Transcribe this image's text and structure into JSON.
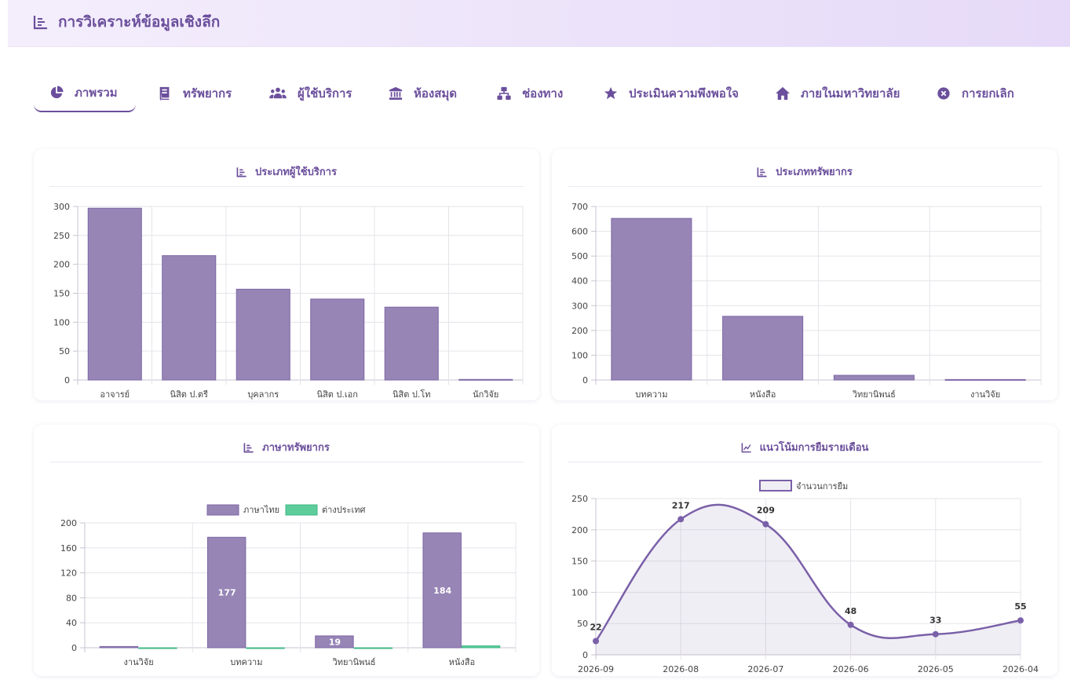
{
  "header": {
    "title": "การวิเคราะห์ข้อมูลเชิงลึก",
    "icon": "bar-chart-icon"
  },
  "tabs": [
    {
      "label": "ภาพรวม",
      "icon": "pie-chart-icon",
      "active": true
    },
    {
      "label": "ทรัพยากร",
      "icon": "book-icon"
    },
    {
      "label": "ผู้ใช้บริการ",
      "icon": "users-icon"
    },
    {
      "label": "ห้องสมุด",
      "icon": "library-icon"
    },
    {
      "label": "ช่องทาง",
      "icon": "network-icon"
    },
    {
      "label": "ประเมินความพึงพอใจ",
      "icon": "star-icon"
    },
    {
      "label": "ภายในมหาวิทยาลัย",
      "icon": "home-icon"
    },
    {
      "label": "การยกเลิก",
      "icon": "cancel-icon"
    }
  ],
  "cards": {
    "user_types": {
      "title": "ประเภทผู้ใช้บริการ"
    },
    "resource_types": {
      "title": "ประเภททรัพยากร"
    },
    "resource_language": {
      "title": "ภาษาทรัพยากร"
    },
    "monthly_trend": {
      "title": "แนวโน้มการยืมรายเดือน"
    }
  },
  "colors": {
    "primary": "#6b4f9c",
    "bar": "#9785b6",
    "green": "#5dcd9b"
  },
  "chart_data": [
    {
      "type": "bar",
      "categories": [
        "อาจารย์",
        "นิสิต ป.ตรี",
        "บุคลากร",
        "นิสิต ป.เอก",
        "นิสิต ป.โท",
        "นักวิจัย"
      ],
      "values": [
        297,
        215,
        157,
        140,
        126,
        1
      ],
      "ylim": [
        0,
        300
      ],
      "yticks": [
        0,
        50,
        100,
        150,
        200,
        250,
        300
      ],
      "grid": true
    },
    {
      "type": "bar",
      "categories": [
        "บทความ",
        "หนังสือ",
        "วิทยานิพนธ์",
        "งานวิจัย"
      ],
      "values": [
        652,
        257,
        19,
        2
      ],
      "ylim": [
        0,
        700
      ],
      "yticks": [
        0,
        100,
        200,
        300,
        400,
        500,
        600,
        700
      ],
      "grid": true
    },
    {
      "type": "bar",
      "categories": [
        "งานวิจัย",
        "บทความ",
        "วิทยานิพนธ์",
        "หนังสือ"
      ],
      "series": [
        {
          "name": "ภาษาไทย",
          "values": [
            2,
            177,
            19,
            184
          ],
          "labels": [
            "",
            "177",
            "19",
            "184"
          ]
        },
        {
          "name": "ต่างประเทศ",
          "values": [
            0,
            0,
            0,
            3
          ],
          "labels": [
            "",
            "",
            "",
            ""
          ]
        }
      ],
      "ylim": [
        0,
        200
      ],
      "yticks": [
        0,
        40,
        80,
        120,
        160,
        200
      ],
      "legend": "top",
      "grid": true
    },
    {
      "type": "line",
      "x": [
        "2026-09",
        "2026-08",
        "2026-07",
        "2026-06",
        "2026-05",
        "2026-04"
      ],
      "series": [
        {
          "name": "จำนวนการยืม",
          "values": [
            22,
            217,
            209,
            48,
            33,
            55
          ]
        }
      ],
      "ylim": [
        0,
        250
      ],
      "yticks": [
        0,
        50,
        100,
        150,
        200,
        250
      ],
      "legend": "top",
      "grid": true
    }
  ]
}
